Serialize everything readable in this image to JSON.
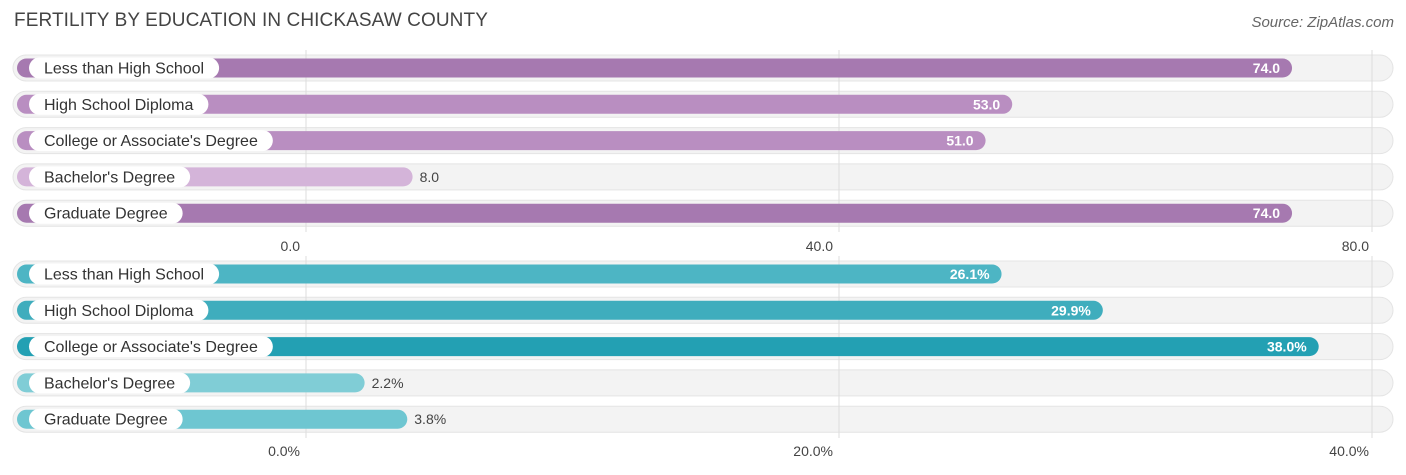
{
  "title": "FERTILITY BY EDUCATION IN CHICKASAW COUNTY",
  "source": "Source: ZipAtlas.com",
  "chart_data": [
    {
      "type": "bar",
      "orientation": "horizontal",
      "categories": [
        "Less than High School",
        "High School Diploma",
        "College or Associate's Degree",
        "Bachelor's Degree",
        "Graduate Degree"
      ],
      "values": [
        74.0,
        53.0,
        51.0,
        8.0,
        74.0
      ],
      "value_labels": [
        "74.0",
        "53.0",
        "51.0",
        "8.0",
        "74.0"
      ],
      "xlim": [
        0,
        80
      ],
      "ticks": [
        "0.0",
        "40.0",
        "80.0"
      ],
      "tick_values": [
        0,
        40,
        80
      ],
      "bar_colors": [
        "#a679b0",
        "#b98ec1",
        "#b98ec1",
        "#d4b4d9",
        "#a679b0"
      ]
    },
    {
      "type": "bar",
      "orientation": "horizontal",
      "categories": [
        "Less than High School",
        "High School Diploma",
        "College or Associate's Degree",
        "Bachelor's Degree",
        "Graduate Degree"
      ],
      "values": [
        26.1,
        29.9,
        38.0,
        2.2,
        3.8
      ],
      "value_labels": [
        "26.1%",
        "29.9%",
        "38.0%",
        "2.2%",
        "3.8%"
      ],
      "xlim": [
        0,
        40
      ],
      "ticks": [
        "0.0%",
        "20.0%",
        "40.0%"
      ],
      "tick_values": [
        0,
        20,
        40
      ],
      "bar_colors": [
        "#4db5c4",
        "#3fadbd",
        "#23a0b3",
        "#80cdd6",
        "#6ec6d1"
      ]
    }
  ]
}
